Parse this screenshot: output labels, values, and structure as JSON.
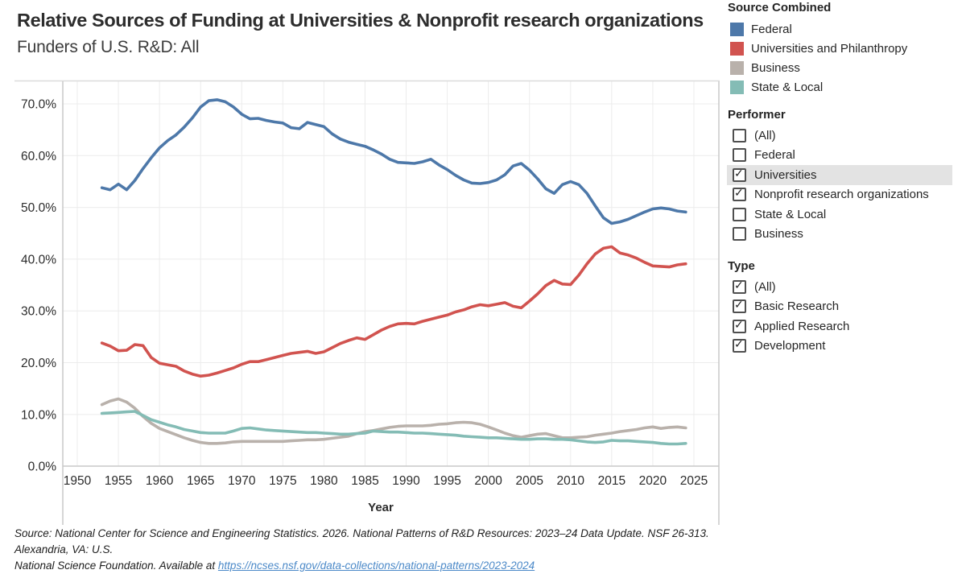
{
  "header": {
    "title": "Relative Sources of Funding at Universities & Nonprofit research organizations",
    "subtitle": "Funders of U.S. R&D: All"
  },
  "legend": {
    "title": "Source Combined",
    "items": [
      {
        "label": "Federal",
        "color": "#4d78a9"
      },
      {
        "label": "Universities and Philanthropy",
        "color": "#d1534f"
      },
      {
        "label": "Business",
        "color": "#b9b1ab"
      },
      {
        "label": "State & Local",
        "color": "#84bcb5"
      }
    ]
  },
  "filters": [
    {
      "title": "Performer",
      "options": [
        {
          "label": "(All)",
          "checked": false,
          "highlighted": false
        },
        {
          "label": "Federal",
          "checked": false,
          "highlighted": false
        },
        {
          "label": "Universities",
          "checked": true,
          "highlighted": true
        },
        {
          "label": "Nonprofit research organizations",
          "checked": true,
          "highlighted": false
        },
        {
          "label": "State & Local",
          "checked": false,
          "highlighted": false
        },
        {
          "label": "Business",
          "checked": false,
          "highlighted": false
        }
      ]
    },
    {
      "title": "Type",
      "options": [
        {
          "label": "(All)",
          "checked": true,
          "highlighted": false
        },
        {
          "label": "Basic Research",
          "checked": true,
          "highlighted": false
        },
        {
          "label": "Applied Research",
          "checked": true,
          "highlighted": false
        },
        {
          "label": "Development",
          "checked": true,
          "highlighted": false
        }
      ]
    }
  ],
  "source_note": {
    "line1": "Source: National Center for Science and Engineering Statistics. 2026. National Patterns of R&D Resources: 2023–24 Data Update. NSF 26-313. Alexandria, VA: U.S.",
    "line2_prefix": "National Science Foundation. Available at ",
    "link_text": "https://ncses.nsf.gov/data-collections/national-patterns/2023-2024",
    "link_href": "https://ncses.nsf.gov/data-collections/national-patterns/2023-2024"
  },
  "chart_data": {
    "type": "line",
    "title": "Relative Sources of Funding at Universities & Nonprofit research organizations",
    "subtitle": "Funders of U.S. R&D: All",
    "xlabel": "Year",
    "ylabel": "",
    "y_unit": "%",
    "grid": true,
    "legend_position": "right",
    "xlim": [
      1948,
      2028
    ],
    "ylim": [
      0,
      74
    ],
    "x_ticks": [
      1950,
      1955,
      1960,
      1965,
      1970,
      1975,
      1980,
      1985,
      1990,
      1995,
      2000,
      2005,
      2010,
      2015,
      2020,
      2025
    ],
    "y_ticks": [
      0,
      10,
      20,
      30,
      40,
      50,
      60,
      70
    ],
    "years": [
      1953,
      1954,
      1955,
      1956,
      1957,
      1958,
      1959,
      1960,
      1961,
      1962,
      1963,
      1964,
      1965,
      1966,
      1967,
      1968,
      1969,
      1970,
      1971,
      1972,
      1973,
      1974,
      1975,
      1976,
      1977,
      1978,
      1979,
      1980,
      1981,
      1982,
      1983,
      1984,
      1985,
      1986,
      1987,
      1988,
      1989,
      1990,
      1991,
      1992,
      1993,
      1994,
      1995,
      1996,
      1997,
      1998,
      1999,
      2000,
      2001,
      2002,
      2003,
      2004,
      2005,
      2006,
      2007,
      2008,
      2009,
      2010,
      2011,
      2012,
      2013,
      2014,
      2015,
      2016,
      2017,
      2018,
      2019,
      2020,
      2021,
      2022,
      2023,
      2024
    ],
    "series": [
      {
        "name": "Federal",
        "color": "#4d78a9",
        "values": [
          53.8,
          53.4,
          54.5,
          53.4,
          55.2,
          57.5,
          59.6,
          61.5,
          62.9,
          64.0,
          65.5,
          67.3,
          69.4,
          70.6,
          70.8,
          70.4,
          69.4,
          68.0,
          67.1,
          67.2,
          66.8,
          66.5,
          66.3,
          65.4,
          65.2,
          66.4,
          66.0,
          65.6,
          64.2,
          63.2,
          62.6,
          62.2,
          61.8,
          61.1,
          60.3,
          59.3,
          58.7,
          58.6,
          58.5,
          58.8,
          59.3,
          58.2,
          57.3,
          56.2,
          55.3,
          54.7,
          54.6,
          54.8,
          55.3,
          56.3,
          58.0,
          58.5,
          57.2,
          55.5,
          53.6,
          52.7,
          54.4,
          55.0,
          54.4,
          52.7,
          50.3,
          48.0,
          46.9,
          47.2,
          47.7,
          48.4,
          49.1,
          49.7,
          49.9,
          49.7,
          49.3,
          49.1
        ]
      },
      {
        "name": "Universities and Philanthropy",
        "color": "#d1534f",
        "values": [
          23.8,
          23.2,
          22.3,
          22.4,
          23.5,
          23.3,
          21.0,
          19.9,
          19.6,
          19.3,
          18.4,
          17.8,
          17.4,
          17.6,
          18.0,
          18.5,
          19.0,
          19.7,
          20.2,
          20.2,
          20.6,
          21.0,
          21.4,
          21.8,
          22.0,
          22.2,
          21.8,
          22.1,
          22.9,
          23.7,
          24.3,
          24.8,
          24.5,
          25.4,
          26.3,
          27.0,
          27.5,
          27.6,
          27.5,
          28.0,
          28.4,
          28.8,
          29.2,
          29.8,
          30.2,
          30.8,
          31.2,
          31.0,
          31.3,
          31.6,
          30.9,
          30.6,
          31.9,
          33.3,
          34.9,
          35.9,
          35.2,
          35.1,
          36.9,
          39.1,
          41.0,
          42.1,
          42.4,
          41.2,
          40.8,
          40.2,
          39.4,
          38.7,
          38.6,
          38.5,
          38.9,
          39.1
        ]
      },
      {
        "name": "Business",
        "color": "#b9b1ab",
        "values": [
          11.9,
          12.6,
          13.0,
          12.4,
          11.2,
          9.6,
          8.3,
          7.3,
          6.7,
          6.1,
          5.5,
          5.0,
          4.6,
          4.4,
          4.4,
          4.5,
          4.7,
          4.8,
          4.8,
          4.8,
          4.8,
          4.8,
          4.8,
          4.9,
          5.0,
          5.1,
          5.1,
          5.2,
          5.4,
          5.6,
          5.8,
          6.3,
          6.7,
          6.9,
          7.2,
          7.5,
          7.7,
          7.8,
          7.8,
          7.8,
          7.9,
          8.1,
          8.2,
          8.4,
          8.5,
          8.4,
          8.1,
          7.6,
          7.0,
          6.4,
          5.9,
          5.6,
          5.9,
          6.2,
          6.3,
          5.9,
          5.5,
          5.5,
          5.6,
          5.7,
          6.0,
          6.2,
          6.4,
          6.7,
          6.9,
          7.1,
          7.4,
          7.6,
          7.3,
          7.5,
          7.6,
          7.4
        ]
      },
      {
        "name": "State & Local",
        "color": "#84bcb5",
        "values": [
          10.2,
          10.3,
          10.4,
          10.5,
          10.6,
          9.8,
          9.0,
          8.5,
          8.0,
          7.6,
          7.1,
          6.8,
          6.5,
          6.4,
          6.4,
          6.4,
          6.8,
          7.3,
          7.4,
          7.2,
          7.0,
          6.9,
          6.8,
          6.7,
          6.6,
          6.5,
          6.5,
          6.4,
          6.3,
          6.2,
          6.2,
          6.3,
          6.4,
          6.8,
          6.7,
          6.6,
          6.6,
          6.5,
          6.4,
          6.4,
          6.3,
          6.2,
          6.1,
          6.0,
          5.8,
          5.7,
          5.6,
          5.5,
          5.5,
          5.4,
          5.3,
          5.2,
          5.2,
          5.3,
          5.3,
          5.2,
          5.2,
          5.1,
          4.9,
          4.7,
          4.6,
          4.7,
          5.0,
          4.9,
          4.9,
          4.8,
          4.7,
          4.6,
          4.4,
          4.3,
          4.3,
          4.4
        ]
      }
    ]
  }
}
